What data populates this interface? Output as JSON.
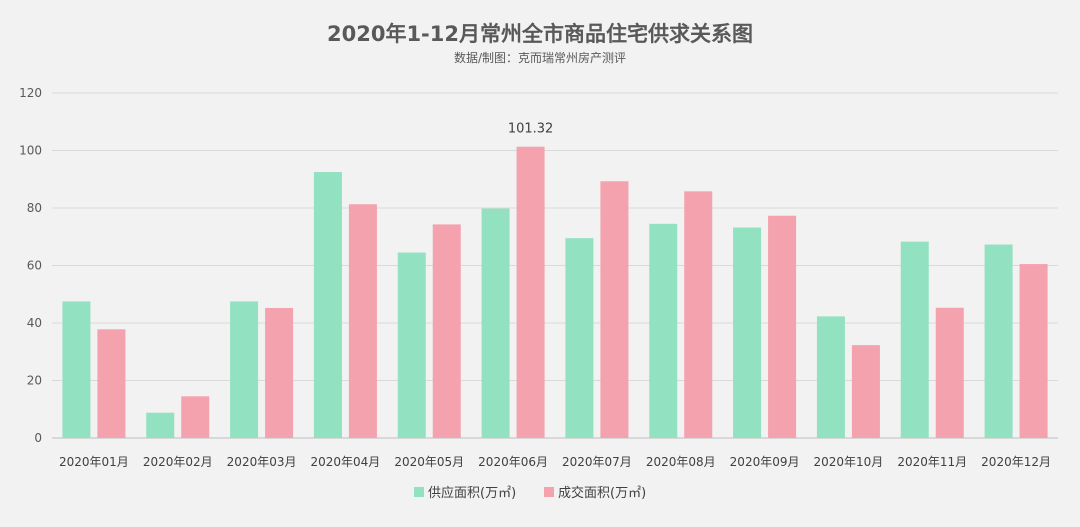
{
  "chart_data": {
    "type": "bar",
    "title": "2020年1-12月常州全市商品住宅供求关系图",
    "subtitle": "数据/制图：克而瑞常州房产测评",
    "categories": [
      "2020年01月",
      "2020年02月",
      "2020年03月",
      "2020年04月",
      "2020年05月",
      "2020年06月",
      "2020年07月",
      "2020年08月",
      "2020年09月",
      "2020年10月",
      "2020年11月",
      "2020年12月"
    ],
    "series": [
      {
        "name": "供应面积(万㎡)",
        "color": "#92e1c0",
        "values": [
          47.5,
          8.8,
          47.5,
          92.5,
          64.5,
          79.8,
          69.5,
          74.5,
          73.2,
          42.3,
          68.3,
          67.3
        ]
      },
      {
        "name": "成交面积(万㎡)",
        "color": "#f4a2ad",
        "values": [
          37.8,
          14.5,
          45.2,
          81.3,
          74.3,
          101.32,
          89.3,
          85.8,
          77.3,
          32.3,
          45.3,
          60.5
        ]
      }
    ],
    "data_labels": [
      {
        "series": 1,
        "index": 5,
        "text": "101.32"
      }
    ],
    "ylim": [
      0,
      120
    ],
    "yticks": [
      0,
      20,
      40,
      60,
      80,
      100,
      120
    ],
    "grid": true,
    "legend_position": "bottom"
  }
}
